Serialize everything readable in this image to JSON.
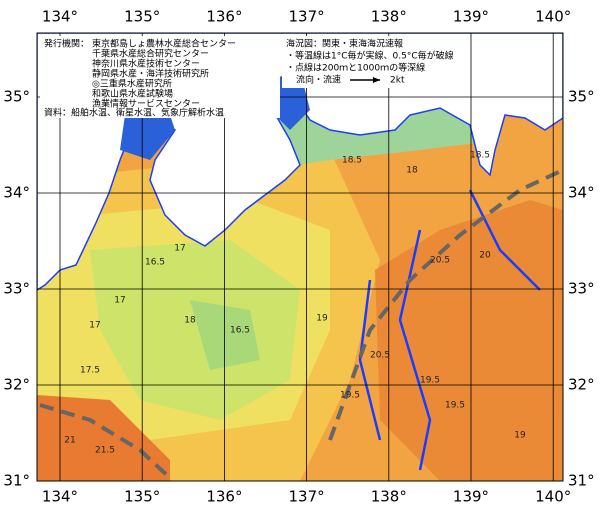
{
  "lon_labels": [
    {
      "value": 134,
      "label": "134°"
    },
    {
      "value": 135,
      "label": "135°"
    },
    {
      "value": 136,
      "label": "136°"
    },
    {
      "value": 137,
      "label": "137°"
    },
    {
      "value": 138,
      "label": "138°"
    },
    {
      "value": 139,
      "label": "139°"
    },
    {
      "value": 140,
      "label": "140°"
    }
  ],
  "lat_labels": [
    {
      "value": 35,
      "label": "35°"
    },
    {
      "value": 34,
      "label": "34°"
    },
    {
      "value": 33,
      "label": "33°"
    },
    {
      "value": 32,
      "label": "32°"
    },
    {
      "value": 31,
      "label": "31°"
    }
  ],
  "publisher": {
    "heading": "発行機関：",
    "agencies": [
      "東京都島しょ農林水産総合センター",
      "千葉県水産総合研究センター",
      "神奈川県水産技術センター",
      "静岡県水産・海洋技術研究所",
      "◎三重県水産研究所",
      "和歌山県水産試験場",
      "漁業情報サービスセンター"
    ]
  },
  "source": "資料：船舶水温、衛星水温、気象庁解析水温",
  "chart_info": {
    "title": "海況図：関東・東海海況速報",
    "notes": [
      "・等温線は1°C毎が実線、0.5°C毎が破線",
      "・点線は200ｍと1000ｍの等深線"
    ]
  },
  "current_legend": {
    "label": "流向・流速",
    "scale": "2kt"
  },
  "contour_labels": [
    "18.5",
    "18.5",
    "18",
    "17",
    "16.5",
    "17",
    "17.5",
    "18",
    "16.5",
    "17",
    "19",
    "19.5",
    "20",
    "20.5",
    "21",
    "21.5",
    "19.5",
    "20.5",
    "19",
    "19.5"
  ]
}
